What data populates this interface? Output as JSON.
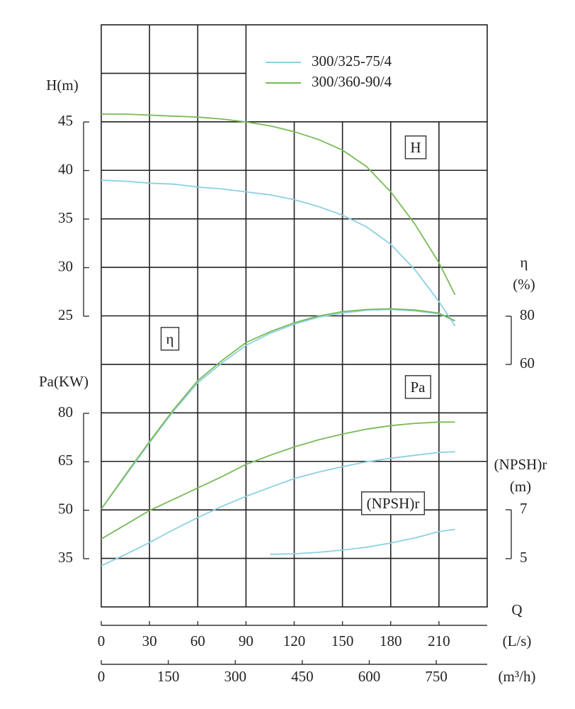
{
  "chart_data": {
    "type": "line",
    "x_label": "Q",
    "x_unit": "(L/s)",
    "x2_unit": "(m³/h)",
    "xlim": [
      0,
      240
    ],
    "xticks": [
      0,
      30,
      60,
      90,
      120,
      150,
      180,
      210
    ],
    "x2lim": [
      0,
      864
    ],
    "x2ticks": [
      0,
      150,
      300,
      450,
      600,
      750
    ],
    "axes": {
      "H": {
        "label": "H(m)",
        "tag": "H",
        "lim": [
          25,
          45
        ],
        "ticks": [
          25,
          30,
          35,
          40,
          45
        ]
      },
      "eta": {
        "label": "η",
        "unit": "(%)",
        "tag": "η",
        "lim": [
          60,
          80
        ],
        "ticks": [
          60,
          80
        ]
      },
      "Pa": {
        "label": "Pa(KW)",
        "tag": "Pa",
        "lim": [
          35,
          80
        ],
        "ticks": [
          35,
          50,
          65,
          80
        ]
      },
      "NPSH": {
        "label": "(NPSH)r",
        "unit": "(m)",
        "tag": "(NPSH)r",
        "lim": [
          5,
          7
        ],
        "ticks": [
          5,
          7
        ]
      }
    },
    "x": [
      0,
      15,
      30,
      45,
      60,
      75,
      90,
      105,
      120,
      135,
      150,
      165,
      180,
      195,
      210,
      220
    ],
    "series": [
      {
        "name": "300/325-75/4",
        "color": "#8dd0e2",
        "H": [
          39.0,
          38.9,
          38.7,
          38.6,
          38.3,
          38.1,
          37.8,
          37.5,
          37.0,
          36.3,
          35.4,
          34.2,
          32.4,
          29.8,
          26.5,
          24.0
        ],
        "eta": [
          0,
          13.8,
          27.5,
          40.7,
          52.4,
          60.6,
          67.9,
          72.9,
          76.7,
          79.6,
          81.3,
          82.5,
          82.8,
          82.2,
          81.0,
          78.0
        ],
        "Pa": [
          32.8,
          36.3,
          40.0,
          44.0,
          47.7,
          51.2,
          54.3,
          57.1,
          59.8,
          61.8,
          63.5,
          65.0,
          66.1,
          67.0,
          67.9,
          68.1
        ],
        "NPSH": [
          null,
          null,
          null,
          null,
          null,
          null,
          null,
          5.18,
          5.2,
          5.26,
          5.35,
          5.47,
          5.64,
          5.85,
          6.11,
          6.2
        ]
      },
      {
        "name": "300/360-90/4",
        "color": "#78bb58",
        "H": [
          45.8,
          45.8,
          45.7,
          45.6,
          45.5,
          45.3,
          45.0,
          44.6,
          44.0,
          43.2,
          42.1,
          40.4,
          37.8,
          34.5,
          30.5,
          27.2
        ],
        "eta": [
          0,
          14.2,
          28.0,
          41.3,
          53.3,
          61.6,
          69.1,
          73.6,
          77.3,
          80.1,
          81.9,
          82.8,
          83.1,
          82.6,
          81.3,
          78.1
        ],
        "Pa": [
          41.1,
          45.5,
          49.9,
          53.4,
          56.9,
          60.4,
          64.2,
          67.0,
          69.6,
          71.8,
          73.6,
          75.1,
          76.2,
          76.9,
          77.3,
          77.3
        ],
        "NPSH": [
          null,
          null,
          null,
          null,
          null,
          null,
          null,
          null,
          null,
          null,
          null,
          null,
          null,
          null,
          null,
          null
        ]
      }
    ]
  }
}
